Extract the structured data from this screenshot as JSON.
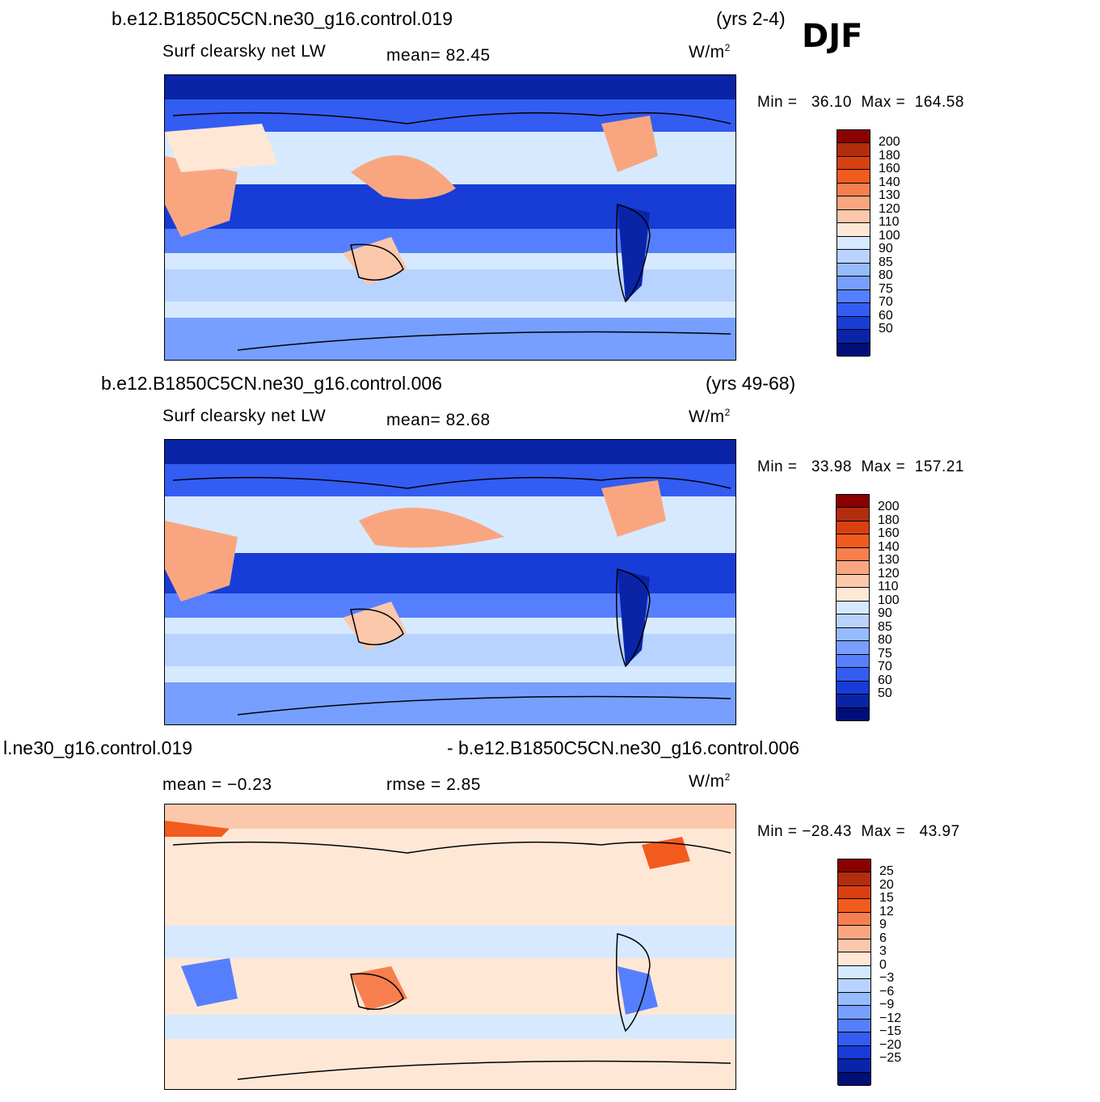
{
  "season": "DJF",
  "panels": [
    {
      "case_name": "b.e12.B1850C5CN.ne30_g16.control.019",
      "years": "(yrs 2-4)",
      "field": "Surf clearsky net LW",
      "stat_text": "mean=   82.45",
      "units": "W/m",
      "units_sup": "2",
      "min_label": "Min =",
      "min_value": "36.10",
      "max_label": "Max =",
      "max_value": "164.58",
      "levels": [
        "200",
        "180",
        "160",
        "140",
        "130",
        "120",
        "110",
        "100",
        "90",
        "85",
        "80",
        "75",
        "70",
        "60",
        "50"
      ],
      "colors": [
        "#8b0000",
        "#b22d0d",
        "#d9400f",
        "#f25b1e",
        "#f77f4f",
        "#f9a680",
        "#fcc8ab",
        "#ffe7d6",
        "#d6e9ff",
        "#b8d3ff",
        "#97bbff",
        "#779fff",
        "#567fff",
        "#335cf2",
        "#173dd6",
        "#0a24a8",
        "#000f78"
      ]
    },
    {
      "case_name": "b.e12.B1850C5CN.ne30_g16.control.006",
      "years": "(yrs 49-68)",
      "field": "Surf clearsky net LW",
      "stat_text": "mean=   82.68",
      "units": "W/m",
      "units_sup": "2",
      "min_label": "Min =",
      "min_value": "33.98",
      "max_label": "Max =",
      "max_value": "157.21",
      "levels": [
        "200",
        "180",
        "160",
        "140",
        "130",
        "120",
        "110",
        "100",
        "90",
        "85",
        "80",
        "75",
        "70",
        "60",
        "50"
      ],
      "colors": [
        "#8b0000",
        "#b22d0d",
        "#d9400f",
        "#f25b1e",
        "#f77f4f",
        "#f9a680",
        "#fcc8ab",
        "#ffe7d6",
        "#d6e9ff",
        "#b8d3ff",
        "#97bbff",
        "#779fff",
        "#567fff",
        "#335cf2",
        "#173dd6",
        "#0a24a8",
        "#000f78"
      ]
    },
    {
      "case_left": "l.ne30_g16.control.019",
      "case_right": "- b.e12.B1850C5CN.ne30_g16.control.006",
      "mean_text": "mean =   −0.23",
      "rmse_text": "rmse =    2.85",
      "units": "W/m",
      "units_sup": "2",
      "min_label": "Min =",
      "min_value": "−28.43",
      "max_label": "Max =",
      "max_value": "43.97",
      "levels": [
        "25",
        "20",
        "15",
        "12",
        "9",
        "6",
        "3",
        "0",
        "−3",
        "−6",
        "−9",
        "−12",
        "−15",
        "−20",
        "−25"
      ],
      "colors": [
        "#8b0000",
        "#b22d0d",
        "#d9400f",
        "#f25b1e",
        "#f77f4f",
        "#f9a680",
        "#fcc8ab",
        "#ffe7d6",
        "#d6e9ff",
        "#b8d3ff",
        "#97bbff",
        "#779fff",
        "#567fff",
        "#335cf2",
        "#173dd6",
        "#0a24a8",
        "#000f78"
      ]
    }
  ]
}
